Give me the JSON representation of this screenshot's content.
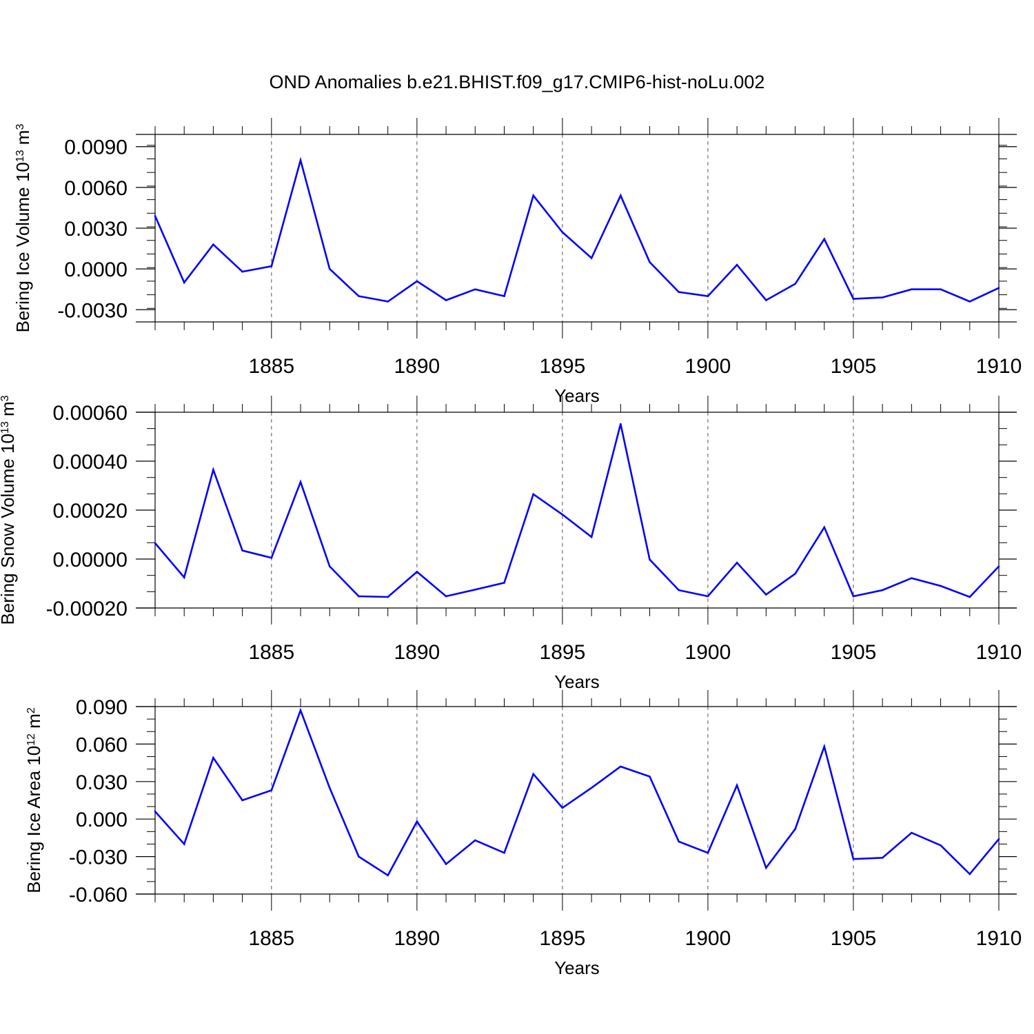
{
  "title": "OND Anomalies b.e21.BHIST.f09_g17.CMIP6-hist-noLu.002",
  "chart_data": [
    {
      "type": "line",
      "title": "OND Anomalies b.e21.BHIST.f09_g17.CMIP6-hist-noLu.002",
      "xlabel": "Years",
      "ylabel": {
        "text": "Bering Ice Volume 10",
        "sup": "13",
        "unit_text": " m",
        "unit_sup": "3"
      },
      "xlim": [
        1881,
        1910
      ],
      "ylim": [
        -0.0039,
        0.0099
      ],
      "x_ticks": [
        1885,
        1890,
        1895,
        1900,
        1905,
        1910
      ],
      "y_ticks": [
        -0.003,
        0.0,
        0.003,
        0.006,
        0.009
      ],
      "y_tick_labels": [
        "-0.0030",
        "0.0000",
        "0.0030",
        "0.0060",
        "0.0090"
      ],
      "grid": "vertical dashed at major x ticks",
      "line_color": "#0000ff",
      "x": [
        1881,
        1882,
        1883,
        1884,
        1885,
        1886,
        1887,
        1888,
        1889,
        1890,
        1891,
        1892,
        1893,
        1894,
        1895,
        1896,
        1897,
        1898,
        1899,
        1900,
        1901,
        1902,
        1903,
        1904,
        1905,
        1906,
        1907,
        1908,
        1909,
        1910
      ],
      "values": [
        0.0039,
        -0.001,
        0.0018,
        -0.0002,
        0.0002,
        0.008,
        0.0,
        -0.002,
        -0.0024,
        -0.0009,
        -0.0023,
        -0.0015,
        -0.002,
        0.0054,
        0.0027,
        0.0008,
        0.0054,
        0.0005,
        -0.0017,
        -0.002,
        0.0003,
        -0.0023,
        -0.0011,
        0.0022,
        -0.0022,
        -0.0021,
        -0.0015,
        -0.0015,
        -0.0024,
        -0.0014
      ]
    },
    {
      "type": "line",
      "xlabel": "Years",
      "ylabel": {
        "text": "Bering Snow Volume 10",
        "sup": "13",
        "unit_text": " m",
        "unit_sup": "3"
      },
      "xlim": [
        1881,
        1910
      ],
      "ylim": [
        -0.0002,
        0.0006
      ],
      "x_ticks": [
        1885,
        1890,
        1895,
        1900,
        1905,
        1910
      ],
      "y_ticks": [
        -0.0002,
        0.0,
        0.0002,
        0.0004,
        0.0006
      ],
      "y_tick_labels": [
        "-0.00020",
        "0.00000",
        "0.00020",
        "0.00040",
        "0.00060"
      ],
      "grid": "vertical dashed at major x ticks",
      "line_color": "#0000ff",
      "x": [
        1881,
        1882,
        1883,
        1884,
        1885,
        1886,
        1887,
        1888,
        1889,
        1890,
        1891,
        1892,
        1893,
        1894,
        1895,
        1896,
        1897,
        1898,
        1899,
        1900,
        1901,
        1902,
        1903,
        1904,
        1905,
        1906,
        1907,
        1908,
        1909,
        1910
      ],
      "values": [
        6.5e-05,
        -7.5e-05,
        0.000365,
        3.5e-05,
        5e-06,
        0.000315,
        -3e-05,
        -0.000152,
        -0.000155,
        -5.2e-05,
        -0.000152,
        -0.000125,
        -9.7e-05,
        0.000265,
        0.000182,
        9e-05,
        0.000552,
        -2e-06,
        -0.000127,
        -0.000152,
        -1.5e-05,
        -0.000145,
        -6e-05,
        0.00013,
        -0.000152,
        -0.000127,
        -7.8e-05,
        -0.00011,
        -0.000155,
        -3e-05
      ]
    },
    {
      "type": "line",
      "xlabel": "Years",
      "ylabel": {
        "text": "Bering Ice Area 10",
        "sup": "12",
        "unit_text": " m",
        "unit_sup": "2"
      },
      "xlim": [
        1881,
        1910
      ],
      "ylim": [
        -0.06,
        0.09
      ],
      "x_ticks": [
        1885,
        1890,
        1895,
        1900,
        1905,
        1910
      ],
      "y_ticks": [
        -0.06,
        -0.03,
        0.0,
        0.03,
        0.06,
        0.09
      ],
      "y_tick_labels": [
        "-0.060",
        "-0.030",
        "0.000",
        "0.030",
        "0.060",
        "0.090"
      ],
      "grid": "vertical dashed at major x ticks",
      "line_color": "#0000ff",
      "x": [
        1881,
        1882,
        1883,
        1884,
        1885,
        1886,
        1887,
        1888,
        1889,
        1890,
        1891,
        1892,
        1893,
        1894,
        1895,
        1896,
        1897,
        1898,
        1899,
        1900,
        1901,
        1902,
        1903,
        1904,
        1905,
        1906,
        1907,
        1908,
        1909,
        1910
      ],
      "values": [
        0.006,
        -0.02,
        0.049,
        0.015,
        0.023,
        0.087,
        0.025,
        -0.03,
        -0.045,
        -0.002,
        -0.036,
        -0.017,
        -0.027,
        0.036,
        0.009,
        0.025,
        0.042,
        0.034,
        -0.018,
        -0.027,
        0.027,
        -0.039,
        -0.008,
        0.058,
        -0.032,
        -0.031,
        -0.011,
        -0.021,
        -0.044,
        -0.016
      ]
    }
  ]
}
